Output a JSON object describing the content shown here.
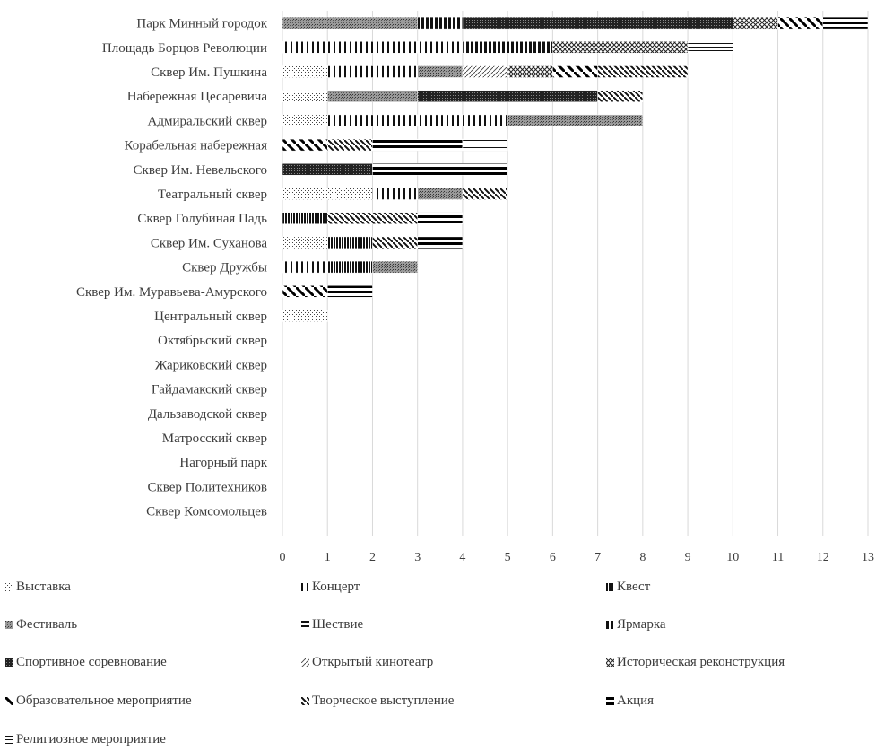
{
  "chart_data": {
    "type": "bar",
    "orientation": "horizontal",
    "stacked": true,
    "xlim": [
      0,
      13
    ],
    "x_ticks": [
      "0",
      "1",
      "2",
      "3",
      "4",
      "5",
      "6",
      "7",
      "8",
      "9",
      "10",
      "11",
      "12",
      "13"
    ],
    "grid": "vertical",
    "legend_position": "bottom",
    "categories": [
      "Парк Минный городок",
      "Площадь Борцов Революции",
      "Сквер Им. Пушкина",
      "Набережная Цесаревича",
      "Адмиральский сквер",
      "Корабельная набережная",
      "Сквер Им. Невельского",
      "Театральный сквер",
      "Сквер Голубиная Падь",
      "Сквер Им. Суханова",
      "Сквер Дружбы",
      "Сквер Им. Муравьева-Амурского",
      "Центральный сквер",
      "Октябрьский сквер",
      "Жариковский сквер",
      "Гайдамакский сквер",
      "Дальзаводской сквер",
      "Матросский сквер",
      "Нагорный парк",
      "Сквер Политехников",
      "Сквер Комсомольцев"
    ],
    "series": [
      {
        "name": "Выставка",
        "values": [
          0,
          0,
          1,
          1,
          1,
          0,
          0,
          2,
          0,
          1,
          0,
          0,
          1,
          0,
          0,
          0,
          0,
          0,
          0,
          0,
          0
        ]
      },
      {
        "name": "Концерт",
        "values": [
          0,
          4,
          2,
          0,
          4,
          0,
          0,
          1,
          0,
          0,
          1,
          0,
          0,
          0,
          0,
          0,
          0,
          0,
          0,
          0,
          0
        ]
      },
      {
        "name": "Квест",
        "values": [
          0,
          0,
          0,
          0,
          0,
          0,
          0,
          0,
          1,
          1,
          1,
          0,
          0,
          0,
          0,
          0,
          0,
          0,
          0,
          0,
          0
        ]
      },
      {
        "name": "Фестиваль",
        "values": [
          3,
          0,
          1,
          2,
          3,
          0,
          0,
          1,
          0,
          0,
          1,
          0,
          0,
          0,
          0,
          0,
          0,
          0,
          0,
          0,
          0
        ]
      },
      {
        "name": "Шествие",
        "values": [
          0,
          0,
          0,
          0,
          0,
          0,
          0,
          0,
          0,
          0,
          0,
          0,
          0,
          0,
          0,
          0,
          0,
          0,
          0,
          0,
          0
        ]
      },
      {
        "name": "Ярмарка",
        "values": [
          1,
          2,
          0,
          0,
          0,
          0,
          0,
          0,
          0,
          0,
          0,
          0,
          0,
          0,
          0,
          0,
          0,
          0,
          0,
          0,
          0
        ]
      },
      {
        "name": "Спортивное соревнование",
        "values": [
          6,
          0,
          0,
          4,
          0,
          0,
          2,
          0,
          0,
          0,
          0,
          0,
          0,
          0,
          0,
          0,
          0,
          0,
          0,
          0,
          0
        ]
      },
      {
        "name": "Открытый кинотеатр",
        "values": [
          0,
          0,
          1,
          0,
          0,
          0,
          0,
          0,
          0,
          0,
          0,
          0,
          0,
          0,
          0,
          0,
          0,
          0,
          0,
          0,
          0
        ]
      },
      {
        "name": "Историческая реконструкция",
        "values": [
          1,
          3,
          1,
          0,
          0,
          0,
          0,
          0,
          0,
          0,
          0,
          0,
          0,
          0,
          0,
          0,
          0,
          0,
          0,
          0,
          0
        ]
      },
      {
        "name": "Образовательное мероприятие",
        "values": [
          1,
          0,
          1,
          0,
          0,
          1,
          0,
          0,
          0,
          0,
          0,
          1,
          0,
          0,
          0,
          0,
          0,
          0,
          0,
          0,
          0
        ]
      },
      {
        "name": "Творческое выступление",
        "values": [
          0,
          0,
          2,
          1,
          0,
          1,
          0,
          1,
          2,
          1,
          0,
          0,
          0,
          0,
          0,
          0,
          0,
          0,
          0,
          0,
          0
        ]
      },
      {
        "name": "Акция",
        "values": [
          1,
          0,
          0,
          0,
          0,
          2,
          3,
          0,
          1,
          1,
          0,
          1,
          0,
          0,
          0,
          0,
          0,
          0,
          0,
          0,
          0
        ]
      },
      {
        "name": "Религиозное мероприятие",
        "values": [
          0,
          1,
          0,
          0,
          0,
          1,
          0,
          0,
          0,
          0,
          0,
          0,
          0,
          0,
          0,
          0,
          0,
          0,
          0,
          0,
          0
        ]
      }
    ]
  }
}
